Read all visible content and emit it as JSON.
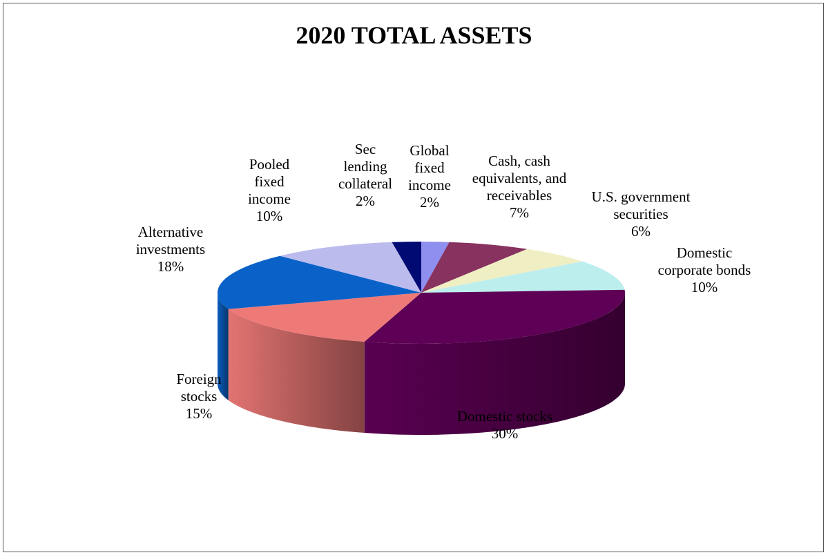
{
  "chart_data": {
    "type": "pie",
    "style": "3d",
    "title": "2020 TOTAL ASSETS",
    "slices": [
      {
        "label": [
          "Global",
          "fixed",
          "income"
        ],
        "pct_label": "2%",
        "value": 2.2,
        "color": "#8f8ff0"
      },
      {
        "label": [
          "Cash, cash",
          "equivalents, and",
          "receivables"
        ],
        "pct_label": "7%",
        "value": 6.5,
        "color": "#87325f"
      },
      {
        "label": [
          "U.S. government",
          "securities"
        ],
        "pct_label": "6%",
        "value": 5.8,
        "color": "#f0eec3"
      },
      {
        "label": [
          "Domestic",
          "corporate bonds"
        ],
        "pct_label": "10%",
        "value": 9.6,
        "color": "#bdeeee"
      },
      {
        "label": [
          "Domestic stocks"
        ],
        "pct_label": "30%",
        "value": 30.4,
        "color": "#5e0055"
      },
      {
        "label": [
          "Foreign",
          "stocks"
        ],
        "pct_label": "15%",
        "value": 15.3,
        "color": "#ee7a78"
      },
      {
        "label": [
          "Alternative",
          "investments"
        ],
        "pct_label": "18%",
        "value": 18.0,
        "color": "#0a62c8"
      },
      {
        "label": [
          "Pooled",
          "fixed",
          "income"
        ],
        "pct_label": "10%",
        "value": 9.9,
        "color": "#bbbbee"
      },
      {
        "label": [
          "Sec",
          "lending",
          "collateral"
        ],
        "pct_label": "2%",
        "value": 2.3,
        "color": "#000a73"
      }
    ]
  }
}
